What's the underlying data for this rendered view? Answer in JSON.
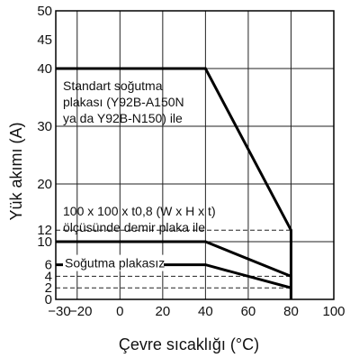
{
  "chart_data": {
    "type": "line",
    "title": "",
    "xlabel": "Çevre sıcaklığı (°C)",
    "ylabel": "Yük akımı (A)",
    "xlim": [
      -30,
      100
    ],
    "ylim": [
      0,
      50
    ],
    "x_ticks": [
      -30,
      -20,
      0,
      20,
      40,
      60,
      80,
      100
    ],
    "x_tick_labels": [
      "−30",
      "−20",
      "0",
      "20",
      "40",
      "60",
      "80",
      "100"
    ],
    "y_ticks": [
      0,
      2,
      4,
      6,
      10,
      12,
      20,
      30,
      40,
      45,
      50
    ],
    "y_tick_labels": [
      "0",
      "2",
      "4",
      "6",
      "10",
      "12",
      "20",
      "30",
      "40",
      "45",
      "50"
    ],
    "grid": true,
    "series": [
      {
        "x": [
          -30,
          40,
          80,
          80
        ],
        "y": [
          40,
          40,
          12,
          0
        ],
        "label_lines": [
          "Standart soğutma",
          "plakası (Y92B-A150N",
          "ya da Y92B-N150) ile"
        ]
      },
      {
        "x": [
          -30,
          40,
          80,
          80
        ],
        "y": [
          10,
          10,
          4,
          0
        ],
        "label_lines": [
          "100 x 100 x t0,8 (W x H x t)",
          "ölçüsünde demir plaka ile"
        ]
      },
      {
        "x": [
          -30,
          40,
          80,
          80
        ],
        "y": [
          6,
          6,
          2,
          0
        ],
        "label_lines": [
          "Soğutma plakasız"
        ]
      }
    ],
    "reference_lines": [
      {
        "y": 12,
        "x_end": 80
      },
      {
        "y": 4,
        "x_end": 80
      },
      {
        "y": 2,
        "x_end": 80
      }
    ]
  }
}
